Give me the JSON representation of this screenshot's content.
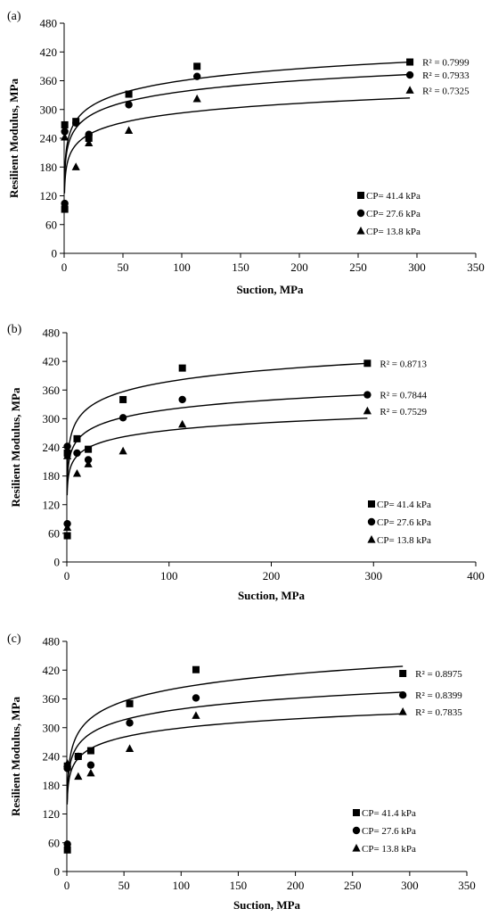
{
  "chart_data": [
    {
      "type": "scatter",
      "panel_label": "(a)",
      "xlabel": "Suction, MPa",
      "ylabel": "Resilient Modulus, MPa",
      "xlim": [
        0,
        350
      ],
      "ylim": [
        0,
        480
      ],
      "xticks": [
        0,
        50,
        100,
        150,
        200,
        250,
        300,
        350
      ],
      "yticks": [
        0,
        60,
        120,
        180,
        240,
        300,
        360,
        420,
        480
      ],
      "grid": false,
      "legend_position": "lower-right",
      "series": [
        {
          "name": "CP= 41.4 kPa",
          "marker": "square",
          "points": [
            [
              0.5,
              92
            ],
            [
              0.5,
              268
            ],
            [
              10,
              275
            ],
            [
              21,
              240
            ],
            [
              55,
              332
            ],
            [
              113,
              390
            ],
            [
              294,
              399
            ]
          ],
          "r2": "R² = 0.7999",
          "fit": [
            [
              0.3,
              150
            ],
            [
              294,
              399
            ]
          ]
        },
        {
          "name": "CP= 27.6 kPa",
          "marker": "circle",
          "points": [
            [
              0.5,
              104
            ],
            [
              0.5,
              254
            ],
            [
              10,
              272
            ],
            [
              21,
              248
            ],
            [
              55,
              310
            ],
            [
              113,
              369
            ],
            [
              294,
              372
            ]
          ],
          "r2": "R² = 0.7933",
          "fit": [
            [
              0.3,
              145
            ],
            [
              294,
              373
            ]
          ]
        },
        {
          "name": "CP= 13.8 kPa",
          "marker": "triangle",
          "points": [
            [
              0.5,
              242
            ],
            [
              10,
              180
            ],
            [
              21,
              230
            ],
            [
              55,
              256
            ],
            [
              113,
              322
            ],
            [
              294,
              340
            ]
          ],
          "r2": "R² = 0.7325",
          "fit": [
            [
              0.3,
              125
            ],
            [
              294,
              324
            ]
          ]
        }
      ]
    },
    {
      "type": "scatter",
      "panel_label": "(b)",
      "xlabel": "Suction, MPa",
      "ylabel": "Resilient Modulus, MPa",
      "xlim": [
        0,
        400
      ],
      "ylim": [
        0,
        480
      ],
      "xticks": [
        0,
        100,
        200,
        300,
        400
      ],
      "yticks": [
        0,
        60,
        120,
        180,
        240,
        300,
        360,
        420,
        480
      ],
      "grid": false,
      "legend_position": "lower-right",
      "series": [
        {
          "name": "CP= 41.4 kPa",
          "marker": "square",
          "points": [
            [
              0.5,
              55
            ],
            [
              0.5,
              228
            ],
            [
              10,
              258
            ],
            [
              21,
              236
            ],
            [
              55,
              340
            ],
            [
              113,
              406
            ],
            [
              294,
              416
            ]
          ],
          "r2": "R² = 0.8713",
          "fit": [
            [
              0.3,
              172
            ],
            [
              294,
              416
            ]
          ]
        },
        {
          "name": "CP= 27.6 kPa",
          "marker": "circle",
          "points": [
            [
              0.5,
              80
            ],
            [
              0.5,
              242
            ],
            [
              10,
              228
            ],
            [
              21,
              214
            ],
            [
              55,
              302
            ],
            [
              113,
              340
            ],
            [
              294,
              350
            ]
          ],
          "r2": "R² = 0.7844",
          "fit": [
            [
              0.3,
              155
            ],
            [
              294,
              350
            ]
          ]
        },
        {
          "name": "CP= 13.8 kPa",
          "marker": "triangle",
          "points": [
            [
              0.5,
              72
            ],
            [
              0.5,
              222
            ],
            [
              10,
              185
            ],
            [
              21,
              205
            ],
            [
              55,
              232
            ],
            [
              113,
              288
            ],
            [
              294,
              316
            ]
          ],
          "r2": "R² = 0.7529",
          "fit": [
            [
              0.3,
              140
            ],
            [
              294,
              301
            ]
          ]
        }
      ]
    },
    {
      "type": "scatter",
      "panel_label": "(c)",
      "xlabel": "Suction, MPa",
      "ylabel": "Resilient Modulus, MPa",
      "xlim": [
        0,
        350
      ],
      "ylim": [
        0,
        480
      ],
      "xticks": [
        0,
        50,
        100,
        150,
        200,
        250,
        300,
        350
      ],
      "yticks": [
        0,
        60,
        120,
        180,
        240,
        300,
        360,
        420,
        480
      ],
      "grid": false,
      "legend_position": "lower-right",
      "series": [
        {
          "name": "CP= 41.4 kPa",
          "marker": "square",
          "points": [
            [
              0.5,
              45
            ],
            [
              0.5,
              220
            ],
            [
              10,
              240
            ],
            [
              21,
              252
            ],
            [
              55,
              350
            ],
            [
              113,
              421
            ],
            [
              294,
              413
            ]
          ],
          "r2": "R² = 0.8975",
          "fit": [
            [
              0.3,
              145
            ],
            [
              294,
              428
            ]
          ]
        },
        {
          "name": "CP= 27.6 kPa",
          "marker": "circle",
          "points": [
            [
              0.5,
              57
            ],
            [
              0.5,
              215
            ],
            [
              10,
              240
            ],
            [
              21,
              222
            ],
            [
              55,
              310
            ],
            [
              113,
              362
            ],
            [
              294,
              368
            ]
          ],
          "r2": "R² = 0.8399",
          "fit": [
            [
              0.3,
              150
            ],
            [
              294,
              374
            ]
          ]
        },
        {
          "name": "CP= 13.8 kPa",
          "marker": "triangle",
          "points": [
            [
              0.5,
              225
            ],
            [
              10,
              198
            ],
            [
              21,
              205
            ],
            [
              55,
              256
            ],
            [
              113,
              325
            ],
            [
              294,
              333
            ]
          ],
          "r2": "R² = 0.7835",
          "fit": [
            [
              0.3,
              140
            ],
            [
              294,
              329
            ]
          ]
        }
      ]
    }
  ]
}
